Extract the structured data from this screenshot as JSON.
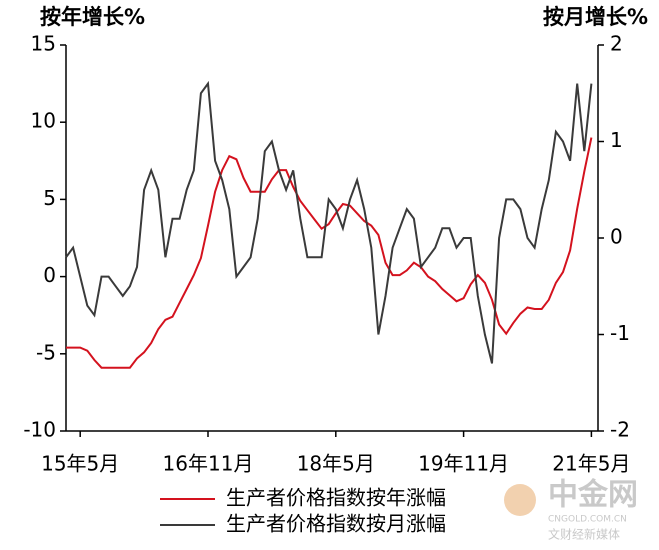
{
  "chart_data": {
    "type": "line",
    "y_label": "按年增长%",
    "y2_label": "按月增长%",
    "categories": [
      null,
      null,
      "15年5月",
      null,
      null,
      null,
      null,
      null,
      null,
      null,
      null,
      null,
      null,
      null,
      null,
      null,
      null,
      null,
      null,
      null,
      "16年11月",
      null,
      null,
      null,
      null,
      null,
      null,
      null,
      null,
      null,
      null,
      null,
      null,
      null,
      null,
      null,
      null,
      null,
      "18年5月",
      null,
      null,
      null,
      null,
      null,
      null,
      null,
      null,
      null,
      null,
      null,
      null,
      null,
      null,
      null,
      null,
      null,
      "19年11月",
      null,
      null,
      null,
      null,
      null,
      null,
      null,
      null,
      null,
      null,
      null,
      null,
      null,
      null,
      null,
      null,
      null,
      "21年5月"
    ],
    "series": [
      {
        "name": "生产者价格指数按年涨幅",
        "color": "#d4121e",
        "axis": "y",
        "values": [
          -4.6,
          -4.6,
          -4.6,
          -4.8,
          -5.4,
          -5.9,
          -5.9,
          -5.9,
          -5.9,
          -5.9,
          -5.3,
          -4.9,
          -4.3,
          -3.4,
          -2.8,
          -2.6,
          -1.7,
          -0.8,
          0.1,
          1.2,
          3.3,
          5.5,
          6.9,
          7.8,
          7.6,
          6.4,
          5.5,
          5.5,
          5.5,
          6.3,
          6.9,
          6.9,
          5.8,
          4.9,
          4.3,
          3.7,
          3.1,
          3.4,
          4.1,
          4.7,
          4.6,
          4.1,
          3.6,
          3.3,
          2.7,
          0.9,
          0.1,
          0.1,
          0.4,
          0.9,
          0.6,
          0.0,
          -0.3,
          -0.8,
          -1.2,
          -1.6,
          -1.4,
          -0.5,
          0.1,
          -0.4,
          -1.5,
          -3.1,
          -3.7,
          -3.0,
          -2.4,
          -2.0,
          -2.1,
          -2.1,
          -1.5,
          -0.4,
          0.3,
          1.7,
          4.4,
          6.8,
          9.0
        ]
      },
      {
        "name": "生产者价格指数按月涨幅",
        "color": "#3a3a3a",
        "axis": "y2",
        "values": [
          -0.2,
          -0.1,
          -0.4,
          -0.7,
          -0.8,
          -0.4,
          -0.4,
          -0.5,
          -0.6,
          -0.5,
          -0.3,
          0.5,
          0.7,
          0.5,
          -0.2,
          0.2,
          0.2,
          0.5,
          0.7,
          1.5,
          1.6,
          0.8,
          0.6,
          0.3,
          -0.4,
          -0.3,
          -0.2,
          0.2,
          0.9,
          1.0,
          0.7,
          0.5,
          0.7,
          0.2,
          -0.2,
          -0.2,
          -0.2,
          0.4,
          0.3,
          0.1,
          0.4,
          0.6,
          0.3,
          -0.1,
          -1.0,
          -0.6,
          -0.1,
          0.1,
          0.3,
          0.2,
          -0.3,
          -0.2,
          -0.1,
          0.1,
          0.1,
          -0.1,
          0.0,
          0.0,
          -0.6,
          -1.0,
          -1.3,
          0.0,
          0.4,
          0.4,
          0.3,
          0.0,
          -0.1,
          0.3,
          0.6,
          1.1,
          1.0,
          0.8,
          1.6,
          0.9,
          1.6
        ]
      }
    ],
    "ylim": [
      -10,
      15
    ],
    "yticks": [
      -10,
      -5,
      0,
      5,
      10,
      15
    ],
    "y2lim": [
      -2,
      2
    ],
    "y2ticks": [
      -2,
      -1,
      0,
      1,
      2
    ],
    "watermark": [
      "中金网",
      "CNGOLD.COM.CN",
      "文财经新媒体"
    ]
  }
}
